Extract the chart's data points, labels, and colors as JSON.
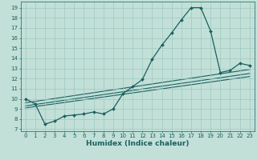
{
  "title": "",
  "xlabel": "Humidex (Indice chaleur)",
  "ylabel": "",
  "background_color": "#c2e0d8",
  "grid_color": "#9dc8bf",
  "line_color": "#1a6060",
  "xlim": [
    -0.5,
    23.5
  ],
  "ylim": [
    6.8,
    19.6
  ],
  "yticks": [
    7,
    8,
    9,
    10,
    11,
    12,
    13,
    14,
    15,
    16,
    17,
    18,
    19
  ],
  "xticks": [
    0,
    1,
    2,
    3,
    4,
    5,
    6,
    7,
    8,
    9,
    10,
    11,
    12,
    13,
    14,
    15,
    16,
    17,
    18,
    19,
    20,
    21,
    22,
    23
  ],
  "main_series": {
    "x": [
      0,
      1,
      2,
      3,
      4,
      5,
      6,
      7,
      8,
      9,
      10,
      11,
      12,
      13,
      14,
      15,
      16,
      17,
      18,
      19,
      20,
      21,
      22,
      23
    ],
    "y": [
      10.0,
      9.5,
      7.5,
      7.8,
      8.3,
      8.4,
      8.5,
      8.7,
      8.5,
      9.0,
      10.5,
      11.2,
      11.9,
      13.9,
      15.3,
      16.5,
      17.8,
      19.0,
      19.0,
      16.7,
      12.6,
      12.8,
      13.5,
      13.3
    ]
  },
  "trend_lines": [
    {
      "x": [
        0,
        23
      ],
      "y": [
        9.1,
        12.2
      ]
    },
    {
      "x": [
        0,
        23
      ],
      "y": [
        9.3,
        12.5
      ]
    },
    {
      "x": [
        0,
        23
      ],
      "y": [
        9.6,
        12.9
      ]
    }
  ],
  "tick_fontsize": 5.0,
  "label_fontsize": 6.5
}
